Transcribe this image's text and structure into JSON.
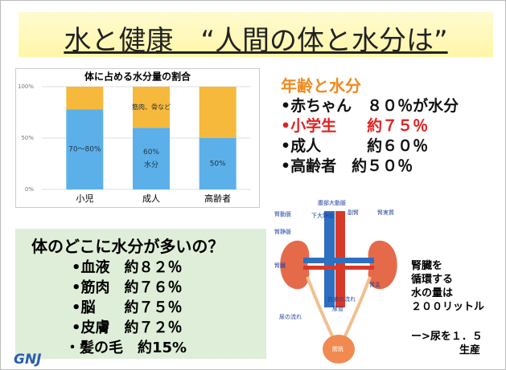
{
  "header": {
    "title": "水と健康　“人間の体と水分は”"
  },
  "chart_data": {
    "type": "stacked_bar",
    "title": "体に占める水分量の割合",
    "categories": [
      "小児",
      "成人",
      "高齢者"
    ],
    "series": [
      {
        "name": "水分",
        "color": "#5cb0ea",
        "values": [
          78,
          60,
          50
        ],
        "value_labels": [
          "70～80%",
          "60%",
          "50%"
        ]
      },
      {
        "name": "筋肉、骨など",
        "color": "#f6b93b",
        "values": [
          22,
          40,
          50
        ]
      }
    ],
    "ylim": [
      0,
      100
    ],
    "yticks": [
      {
        "value": 0,
        "label": "0%"
      },
      {
        "value": 50,
        "label": "50%"
      },
      {
        "value": 100,
        "label": "100%"
      }
    ],
    "grid": true
  },
  "age_section": {
    "title": "年齢と水分",
    "items": [
      "•赤ちゃん　８０％が水分",
      "•小学生　　約７５％",
      "•成人　　　約６０％",
      "•高齢者　約５０％"
    ]
  },
  "body_section": {
    "title": "体のどこに水分が多いの？",
    "items": [
      "•血液　約８２％",
      "•筋肉　約７６％",
      "•脳　　約７５％",
      "•皮膚　約７２％",
      "・髪の毛　約15%"
    ]
  },
  "diagram": {
    "labels": [
      "腎動脈",
      "腹部大動脈",
      "下大静脈",
      "副腎",
      "腎実質",
      "腎静脈",
      "腎臓",
      "腎盂",
      "血液の流れ",
      "尿管",
      "尿の流れ",
      "膀胱"
    ]
  },
  "kidney_note": {
    "lines": [
      "腎臓を",
      "循環する",
      "水の量は",
      "２００リットル",
      "ー>尿を１．５",
      "生産"
    ]
  },
  "logo": "GNJ"
}
